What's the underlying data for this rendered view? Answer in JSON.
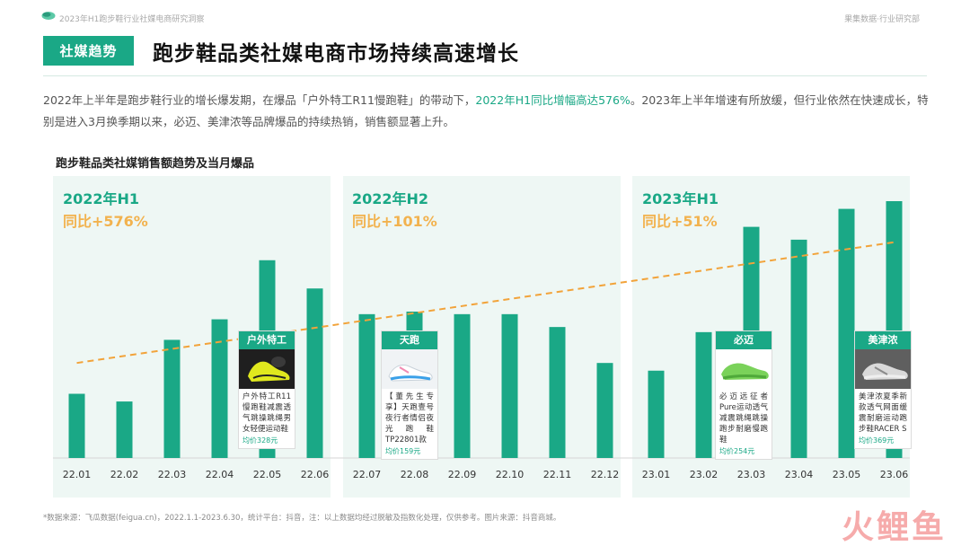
{
  "header": {
    "report_title": "2023年H1跑步鞋行业社媒电商研究洞察",
    "source_label": "果集数据·行业研究部"
  },
  "section_tag": "社媒趋势",
  "headline": "跑步鞋品类社媒电商市场持续高速增长",
  "intro": {
    "part1": "2022年上半年是跑步鞋行业的增长爆发期，在爆品「户外特工R11慢跑鞋」的带动下，",
    "highlight": "2022年H1同比增幅高达576%",
    "part2": "。2023年上半年增速有所放缓，但行业依然在快速成长，特别是进入3月换季期以来，必迈、美津浓等品牌爆品的持续热销，销售额显著上升。"
  },
  "chart_title": "跑步鞋品类社媒销售额趋势及当月爆品",
  "periods": [
    {
      "label": "2022年H1",
      "yoy": "同比+576%"
    },
    {
      "label": "2022年H2",
      "yoy": "同比+101%"
    },
    {
      "label": "2023年H1",
      "yoy": "同比+51%"
    }
  ],
  "products": [
    {
      "brand": "户外特工",
      "desc": "户外特工R11慢跑鞋减震透气跳操跳绳男女轻便运动鞋",
      "price": "均价328元",
      "icon": "black-yellow-shoe-icon"
    },
    {
      "brand": "天跑",
      "desc": "【董先生专享】天跑壹号夜行者情侣夜光跑鞋TP22801款",
      "price": "均价159元",
      "icon": "white-blue-shoe-icon"
    },
    {
      "brand": "必迈",
      "desc": "必迈远征者Pure运动透气减震跳绳跳操跑步耐磨慢跑鞋",
      "price": "均价254元",
      "icon": "green-shoe-icon"
    },
    {
      "brand": "美津浓",
      "desc": "美津浓夏季新款透气网面缓震耐磨运动跑步鞋RACER S",
      "price": "均价369元",
      "icon": "grey-shoe-icon"
    }
  ],
  "footnote": "*数据来源：飞瓜数据(feigua.cn)，2022.1.1-2023.6.30，统计平台：抖音，注：以上数据均经过脱敏及指数化处理，仅供参考。图片来源：抖音商城。",
  "watermark": "火鲤鱼",
  "colors": {
    "accent": "#1aa886",
    "trend": "#f2a33a",
    "panel": "#eef7f4"
  },
  "chart_data": {
    "type": "bar",
    "categories": [
      "22.01",
      "22.02",
      "22.03",
      "22.04",
      "22.05",
      "22.06",
      "22.07",
      "22.08",
      "22.09",
      "22.10",
      "22.11",
      "22.12",
      "23.01",
      "23.02",
      "23.03",
      "23.04",
      "23.05",
      "23.06"
    ],
    "values": [
      25,
      22,
      46,
      54,
      77,
      66,
      56,
      57,
      56,
      56,
      51,
      37,
      34,
      49,
      90,
      85,
      97,
      100
    ],
    "value_scale": "indexed, unlabeled axis",
    "trendline": {
      "style": "dashed",
      "start": 37,
      "end": 84
    },
    "grid": false
  }
}
